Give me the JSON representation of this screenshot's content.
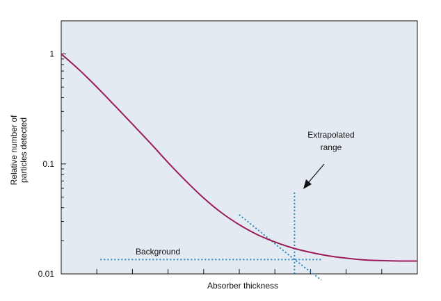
{
  "chart_data": {
    "type": "line",
    "ylabel": [
      "Relative number of",
      "particles detected"
    ],
    "xlabel": "Absorber thickness",
    "yscale": "log",
    "ylim": [
      0.01,
      2.0
    ],
    "xlim": [
      0,
      10
    ],
    "yticks": [
      {
        "value": 1,
        "label": "1"
      },
      {
        "value": 0.1,
        "label": "0.1"
      },
      {
        "value": 0.01,
        "label": "0.01"
      }
    ],
    "xticks": [
      0,
      1,
      2,
      3,
      4,
      5,
      6,
      7,
      8,
      9,
      10
    ],
    "grid": false,
    "background": "#e4eaf1",
    "series": [
      {
        "color": "#9b1b5a",
        "x": [
          0,
          0.5,
          1,
          1.5,
          2,
          2.5,
          3,
          3.5,
          4,
          4.5,
          5,
          5.5,
          6,
          6.5,
          7,
          7.5,
          8,
          8.5,
          9,
          9.5,
          10
        ],
        "y": [
          1.0,
          0.72,
          0.5,
          0.34,
          0.23,
          0.155,
          0.103,
          0.07,
          0.049,
          0.036,
          0.028,
          0.0228,
          0.0195,
          0.0172,
          0.0157,
          0.0146,
          0.0139,
          0.0134,
          0.0132,
          0.0131,
          0.0131
        ]
      }
    ],
    "annotations": {
      "background_label": "Background",
      "background_level": 0.0135,
      "background_x": [
        1.1,
        7.3
      ],
      "extrapolated_label": [
        "Extrapolated",
        "range"
      ],
      "extrapolated_x": 6.55,
      "extrapolated_line": {
        "x": [
          5.0,
          6.55,
          7.3
        ],
        "y": [
          0.0345,
          0.0135,
          0.0088
        ]
      },
      "marker_top_y": 0.055,
      "line_color": "#2a86b8"
    }
  }
}
